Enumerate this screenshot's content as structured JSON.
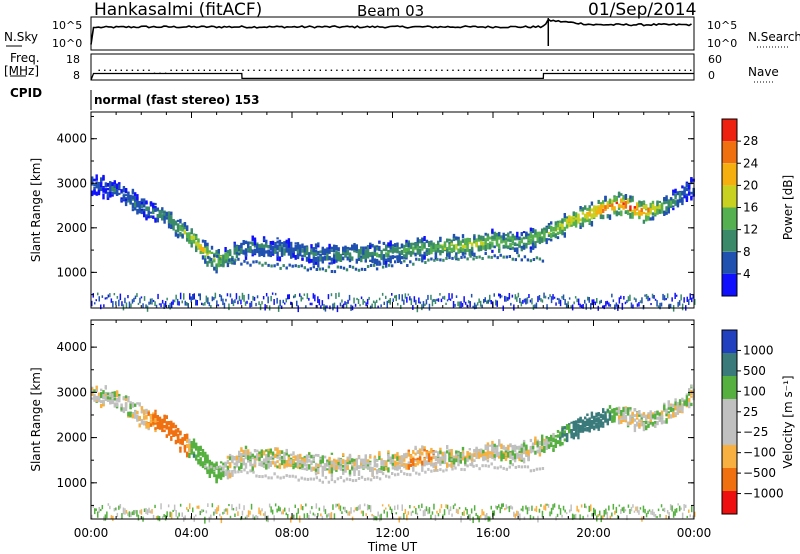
{
  "header": {
    "station": "Hankasalmi (fitACF)",
    "beam": "Beam 03",
    "date": "01/Sep/2014"
  },
  "left_labels": {
    "nsky": "N.Sky",
    "freq": "Freq.",
    "mhz": "[MHz]",
    "cpid": "CPID"
  },
  "right_labels": {
    "nsearch": "N.Search",
    "nave": "Nave"
  },
  "cpid_text": "normal (fast stereo) 153",
  "colors": {
    "power": [
      "#1010ff",
      "#2050b0",
      "#3a8a6a",
      "#55b050",
      "#c8d020",
      "#f5b010",
      "#f07010",
      "#ee2010"
    ],
    "velocity": [
      "#2040c0",
      "#3a7a7a",
      "#55b040",
      "#c0c0c0",
      "#c0c0c0",
      "#f8b040",
      "#f07010",
      "#ee1010"
    ],
    "ground_scatter": "#c0c0c0"
  },
  "chart_data": [
    {
      "type": "line",
      "name": "noise",
      "y_ticks": [
        "10^5",
        "10^0"
      ],
      "y_ticks_right": [
        "10^5",
        "10^0"
      ],
      "x_hours": [
        0,
        0.1,
        2,
        4,
        6,
        8,
        10,
        12,
        14,
        16,
        17.9,
        18.1,
        18.2,
        20,
        22,
        24
      ],
      "nsky_log": [
        1,
        4.1,
        4.2,
        4.2,
        4.2,
        4.2,
        4.2,
        4.2,
        4.2,
        4.2,
        4.2,
        4.7,
        5.4,
        4.6,
        4.6,
        4.6
      ]
    },
    {
      "type": "line",
      "name": "frequency",
      "y_ticks": [
        "18",
        "8"
      ],
      "y_ticks_right": [
        "60",
        "0"
      ],
      "freq_x_hours": [
        0,
        0.1,
        6,
        6.01,
        18,
        18.01,
        24
      ],
      "freq_mhz": [
        8,
        10.5,
        10.5,
        8.6,
        8.6,
        10.5,
        10.5
      ],
      "nave_value": 24
    },
    {
      "type": "heatmap",
      "name": "power",
      "ylabel": "Slant Range [km]",
      "y_ticks": [
        1000,
        2000,
        3000,
        4000
      ],
      "ylim": [
        200,
        4600
      ],
      "xlim": [
        0,
        24
      ],
      "colorbar_label": "Power [dB]",
      "colorbar_ticks": [
        "28",
        "24",
        "20",
        "16",
        "12",
        "8",
        "4"
      ],
      "band_x_hours": [
        0,
        1,
        2,
        3,
        3.5,
        4,
        4.5,
        5,
        5.5,
        6,
        7,
        8,
        9,
        10,
        11,
        12,
        13,
        14,
        15,
        16,
        17,
        18,
        18.5,
        19,
        19.5,
        20,
        20.5,
        21,
        21.5,
        22,
        23,
        24
      ],
      "band_range_km": [
        3000,
        2900,
        2500,
        2300,
        2000,
        1800,
        1500,
        1300,
        1400,
        1600,
        1600,
        1550,
        1450,
        1450,
        1450,
        1500,
        1600,
        1600,
        1650,
        1750,
        1700,
        1900,
        2000,
        2200,
        2300,
        2400,
        2500,
        2600,
        2500,
        2400,
        2600,
        3000
      ],
      "band_power_db": [
        6,
        7,
        8,
        10,
        14,
        18,
        22,
        18,
        14,
        10,
        8,
        8,
        9,
        11,
        12,
        12,
        14,
        16,
        18,
        16,
        14,
        16,
        18,
        20,
        22,
        24,
        26,
        28,
        28,
        26,
        12,
        6
      ]
    },
    {
      "type": "heatmap",
      "name": "velocity",
      "ylabel": "Slant Range [km]",
      "y_ticks": [
        1000,
        2000,
        3000,
        4000
      ],
      "ylim": [
        200,
        4600
      ],
      "xlim": [
        0,
        24
      ],
      "xlabel": "Time UT",
      "x_tick_labels": [
        "00:00",
        "04:00",
        "08:00",
        "12:00",
        "16:00",
        "20:00",
        "00:00"
      ],
      "x_tick_hours": [
        0,
        4,
        8,
        12,
        16,
        20,
        24
      ],
      "colorbar_label": "Velocity [m s⁻¹]",
      "colorbar_ticks": [
        "1000",
        "500",
        "100",
        "25",
        "−25",
        "−100",
        "−500",
        "−1000"
      ],
      "band_x_hours": [
        0,
        1,
        2,
        3,
        3.5,
        4,
        4.5,
        5,
        5.5,
        6,
        7,
        8,
        9,
        10,
        11,
        12,
        13,
        14,
        15,
        16,
        17,
        18,
        18.5,
        19,
        19.5,
        20,
        20.5,
        21,
        21.5,
        22,
        23,
        24
      ],
      "band_range_km": [
        3000,
        2900,
        2500,
        2300,
        2000,
        1800,
        1500,
        1300,
        1400,
        1600,
        1600,
        1550,
        1450,
        1450,
        1450,
        1500,
        1600,
        1600,
        1650,
        1750,
        1700,
        1900,
        2000,
        2200,
        2300,
        2400,
        2500,
        2600,
        2500,
        2400,
        2600,
        3000
      ],
      "band_velocity_ms": [
        0,
        0,
        0,
        -300,
        -500,
        200,
        150,
        100,
        0,
        0,
        0,
        0,
        0,
        0,
        0,
        0,
        -100,
        0,
        0,
        0,
        0,
        0,
        150,
        300,
        400,
        450,
        300,
        0,
        0,
        0,
        0,
        0
      ]
    }
  ]
}
